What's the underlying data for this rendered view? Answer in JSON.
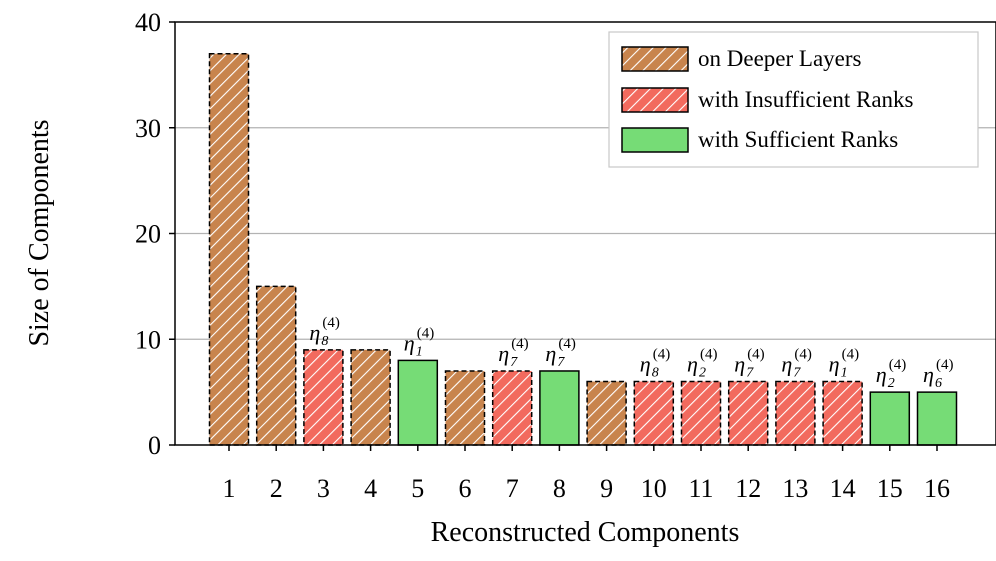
{
  "chart_data": {
    "type": "bar",
    "xlabel": "Reconstructed Components",
    "ylabel": "Size of Components",
    "ylim": [
      0,
      40
    ],
    "yticks": [
      0,
      10,
      20,
      30,
      40
    ],
    "grid": "horizontal",
    "legend_position": "top-right",
    "categories": [
      "1",
      "2",
      "3",
      "4",
      "5",
      "6",
      "7",
      "8",
      "9",
      "10",
      "11",
      "12",
      "13",
      "14",
      "15",
      "16"
    ],
    "values": [
      37,
      15,
      9,
      9,
      8,
      7,
      7,
      7,
      6,
      6,
      6,
      6,
      6,
      6,
      5,
      5
    ],
    "bar_kind": [
      "deeper",
      "deeper",
      "insufficient",
      "deeper",
      "sufficient",
      "deeper",
      "insufficient",
      "sufficient",
      "deeper",
      "insufficient",
      "insufficient",
      "insufficient",
      "insufficient",
      "insufficient",
      "sufficient",
      "sufficient"
    ],
    "annotations": [
      {
        "index": 2,
        "symbol": "η",
        "sub": "8",
        "sup": "(4)"
      },
      {
        "index": 4,
        "symbol": "η",
        "sub": "1",
        "sup": "(4)"
      },
      {
        "index": 6,
        "symbol": "η",
        "sub": "7",
        "sup": "(4)"
      },
      {
        "index": 7,
        "symbol": "η",
        "sub": "7",
        "sup": "(4)"
      },
      {
        "index": 9,
        "symbol": "η",
        "sub": "8",
        "sup": "(4)"
      },
      {
        "index": 10,
        "symbol": "η",
        "sub": "2",
        "sup": "(4)"
      },
      {
        "index": 11,
        "symbol": "η",
        "sub": "7",
        "sup": "(4)"
      },
      {
        "index": 12,
        "symbol": "η",
        "sub": "7",
        "sup": "(4)"
      },
      {
        "index": 13,
        "symbol": "η",
        "sub": "1",
        "sup": "(4)"
      },
      {
        "index": 14,
        "symbol": "η",
        "sub": "2",
        "sup": "(4)"
      },
      {
        "index": 15,
        "symbol": "η",
        "sub": "6",
        "sup": "(4)"
      }
    ],
    "legend": [
      {
        "key": "deeper",
        "label": "on Deeper Layers"
      },
      {
        "key": "insufficient",
        "label": "with Insufficient Ranks"
      },
      {
        "key": "sufficient",
        "label": "with Sufficient Ranks"
      }
    ],
    "colors": {
      "deeper": "#c8844d",
      "insufficient": "#f26a5e",
      "sufficient": "#76dc76",
      "grid": "#b3b3b3"
    }
  }
}
